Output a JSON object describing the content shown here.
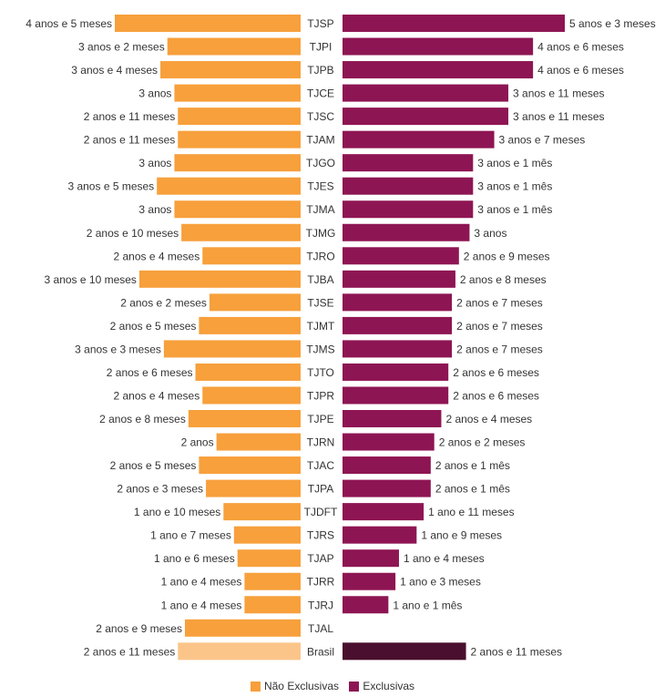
{
  "chart_data": {
    "type": "bar",
    "orientation": "horizontal-diverging",
    "categories": [
      "TJSP",
      "TJPI",
      "TJPB",
      "TJCE",
      "TJSC",
      "TJAM",
      "TJGO",
      "TJES",
      "TJMA",
      "TJMG",
      "TJRO",
      "TJBA",
      "TJSE",
      "TJMT",
      "TJMS",
      "TJTO",
      "TJPR",
      "TJPE",
      "TJRN",
      "TJAC",
      "TJPA",
      "TJDFT",
      "TJRS",
      "TJAP",
      "TJRR",
      "TJRJ",
      "TJAL",
      "Brasil"
    ],
    "series": [
      {
        "name": "Não Exclusivas",
        "color": "#f7a03c",
        "highlight_color": "#fbc58a",
        "values_months": [
          53,
          38,
          40,
          36,
          35,
          35,
          36,
          41,
          36,
          34,
          28,
          46,
          26,
          29,
          39,
          30,
          28,
          32,
          24,
          29,
          27,
          22,
          19,
          18,
          16,
          16,
          33,
          35
        ],
        "labels": [
          "4 anos e 5 meses",
          "3 anos e 2 meses",
          "3 anos e 4 meses",
          "3 anos",
          "2 anos e 11 meses",
          "2 anos e 11 meses",
          "3 anos",
          "3 anos e 5 meses",
          "3 anos",
          "2 anos e 10 meses",
          "2 anos e 4 meses",
          "3 anos e 10 meses",
          "2 anos e 2 meses",
          "2 anos e 5 meses",
          "3 anos e 3 meses",
          "2 anos e 6 meses",
          "2 anos e 4 meses",
          "2 anos e 8 meses",
          "2 anos",
          "2 anos e 5 meses",
          "2 anos e 3 meses",
          "1 ano e 10 meses",
          "1 ano e 7 meses",
          "1 ano e 6 meses",
          "1 ano e 4 meses",
          "1 ano e 4 meses",
          "2 anos e 9 meses",
          "2 anos e 11 meses"
        ]
      },
      {
        "name": "Exclusivas",
        "color": "#8e1553",
        "highlight_color": "#4a0f2e",
        "values_months": [
          63,
          54,
          54,
          47,
          47,
          43,
          37,
          37,
          37,
          36,
          33,
          32,
          31,
          31,
          31,
          30,
          30,
          28,
          26,
          25,
          25,
          23,
          21,
          16,
          15,
          13,
          null,
          35
        ],
        "labels": [
          "5 anos e 3 meses",
          "4 anos e 6 meses",
          "4 anos e 6 meses",
          "3 anos e 11 meses",
          "3 anos e 11 meses",
          "3 anos e 7 meses",
          "3 anos e 1 mês",
          "3 anos e 1 mês",
          "3 anos e 1 mês",
          "3 anos",
          "2 anos e 9 meses",
          "2 anos e 8 meses",
          "2 anos e 7 meses",
          "2 anos e 7 meses",
          "2 anos e 7 meses",
          "2 anos e 6 meses",
          "2 anos e 6 meses",
          "2 anos e 4 meses",
          "2 anos e 2 meses",
          "2 anos e 1 mês",
          "2 anos e 1 mês",
          "1 ano e 11 meses",
          "1 ano e 9 meses",
          "1 ano e 4 meses",
          "1 ano e 3 meses",
          "1 ano e 1 mês",
          "",
          "2 anos e 11 meses"
        ]
      }
    ],
    "highlight_category": "Brasil",
    "title": "",
    "xlabel": "",
    "ylabel": "",
    "grid": false,
    "legend_position": "bottom-center"
  }
}
